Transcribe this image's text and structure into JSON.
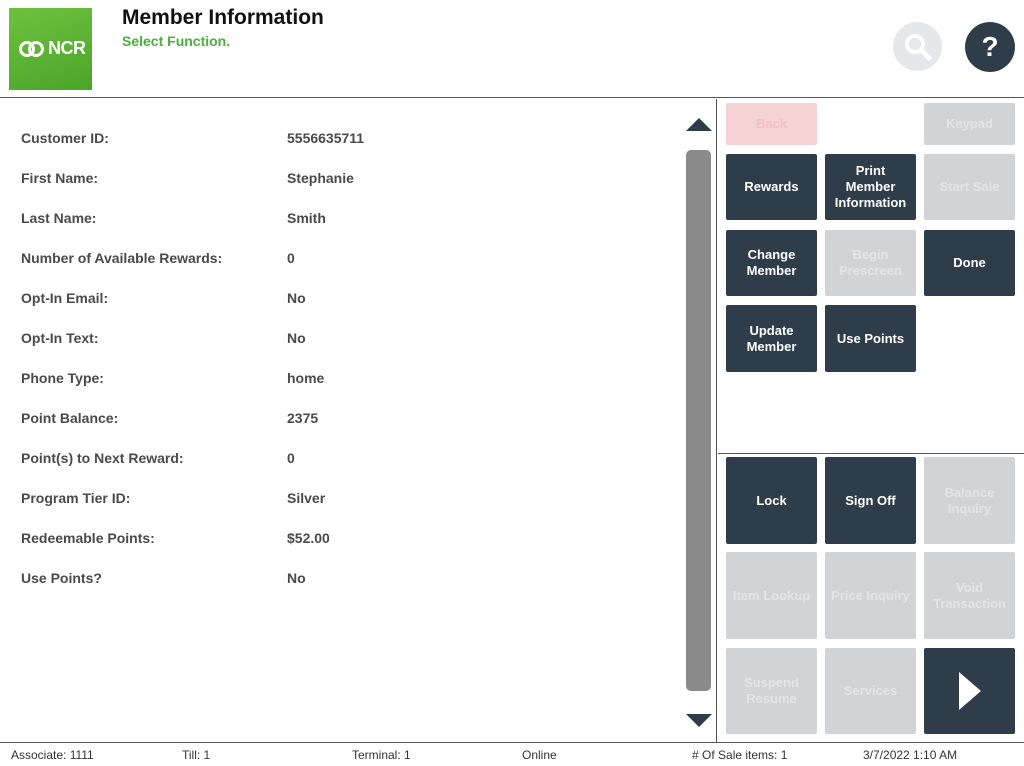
{
  "header": {
    "logo_text": "NCR",
    "title": "Member Information",
    "subtitle": "Select Function.",
    "help_label": "?"
  },
  "member": [
    {
      "label": "Customer ID:",
      "value": "5556635711"
    },
    {
      "label": "First Name:",
      "value": "Stephanie"
    },
    {
      "label": "Last Name:",
      "value": "Smith"
    },
    {
      "label": "Number of Available Rewards:",
      "value": "0"
    },
    {
      "label": "Opt-In Email:",
      "value": "No"
    },
    {
      "label": "Opt-In Text:",
      "value": "No"
    },
    {
      "label": "Phone Type:",
      "value": "home"
    },
    {
      "label": "Point Balance:",
      "value": "2375"
    },
    {
      "label": "Point(s) to Next Reward:",
      "value": "0"
    },
    {
      "label": "Program Tier ID:",
      "value": "Silver"
    },
    {
      "label": "Redeemable Points:",
      "value": "$52.00"
    },
    {
      "label": "Use Points?",
      "value": "No"
    }
  ],
  "function_buttons": {
    "back": "Back",
    "keypad": "Keypad",
    "rewards": "Rewards",
    "print_member_information": "Print Member Information",
    "start_sale": "Start Sale",
    "change_member": "Change Member",
    "begin_prescreen": "Begin Prescreen",
    "done": "Done",
    "update_member": "Update Member",
    "use_points": "Use Points"
  },
  "global_buttons": {
    "lock": "Lock",
    "sign_off": "Sign Off",
    "balance_inquiry": "Balance Inquiry",
    "item_lookup": "Item Lookup",
    "price_inquiry": "Price Inquiry",
    "void_transaction": "Void Transaction",
    "suspend_resume": "Suspend Resume",
    "services": "Services"
  },
  "status": {
    "associate": "Associate: 1111",
    "till": "Till: 1",
    "terminal": "Terminal: 1",
    "connection": "Online",
    "sale_items": "# Of Sale items: 1",
    "datetime": "3/7/2022 1:10 AM"
  },
  "colors": {
    "accent_green": "#4ab03a",
    "button_dark": "#2f3d4a",
    "button_disabled": "#d1d3d4"
  }
}
